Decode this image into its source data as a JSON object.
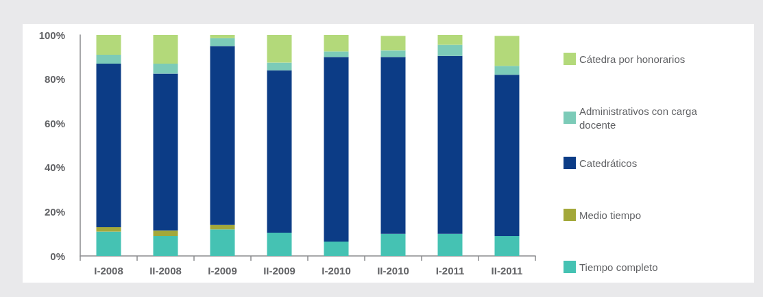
{
  "chart_data": {
    "type": "bar",
    "stacked": true,
    "categories": [
      "I-2008",
      "II-2008",
      "I-2009",
      "II-2009",
      "I-2010",
      "II-2010",
      "I-2011",
      "II-2011"
    ],
    "series": [
      {
        "name": "Tiempo completo",
        "color": "#45c2b3",
        "values": [
          11,
          9,
          12,
          10.5,
          6.5,
          10,
          10,
          9
        ]
      },
      {
        "name": "Medio tiempo",
        "color": "#a3a83a",
        "values": [
          2,
          2.5,
          2,
          null,
          null,
          null,
          null,
          null
        ]
      },
      {
        "name": "Catedráticos",
        "color": "#0c3c86",
        "values": [
          74,
          71,
          81,
          73.5,
          83.5,
          80,
          80.5,
          73
        ]
      },
      {
        "name": "Administrativos con carga docente",
        "color": "#7ccbb8",
        "values": [
          4,
          4.5,
          3.5,
          3.5,
          2.5,
          3,
          5,
          4
        ]
      },
      {
        "name": "Cátedra por honorarios",
        "color": "#b3d97a",
        "values": [
          9,
          13,
          1.5,
          12.5,
          7.5,
          6.5,
          4.5,
          13.5
        ]
      }
    ],
    "ylim": [
      0,
      100
    ],
    "yticks": [
      {
        "value": 0,
        "label": "0%"
      },
      {
        "value": 20,
        "label": "20%"
      },
      {
        "value": 40,
        "label": "40%"
      },
      {
        "value": 60,
        "label": "60%"
      },
      {
        "value": 80,
        "label": "80%"
      },
      {
        "value": 100,
        "label": "100%"
      }
    ],
    "legend": "right"
  }
}
